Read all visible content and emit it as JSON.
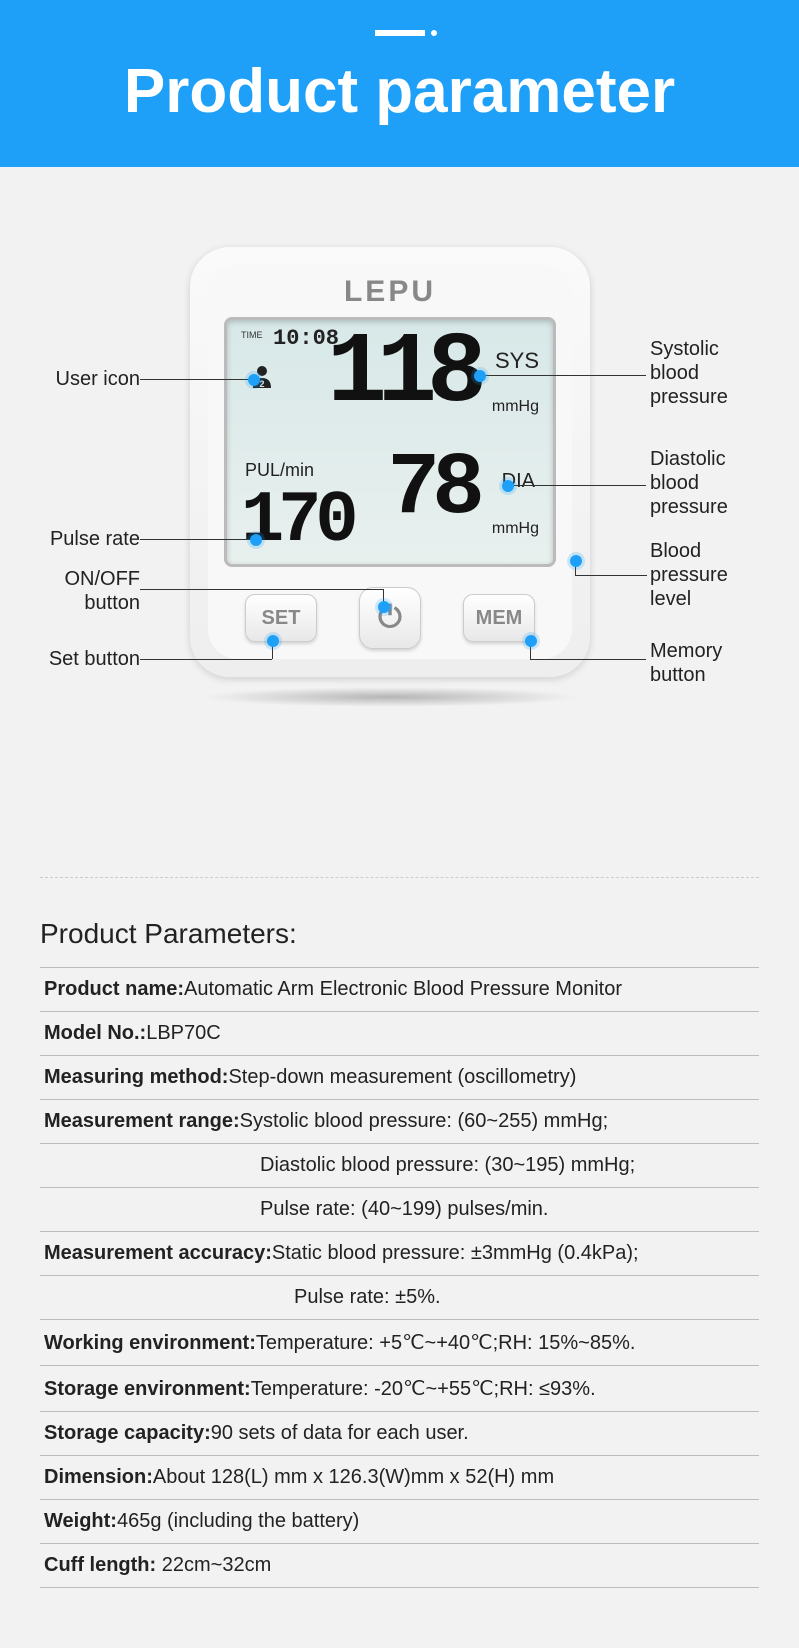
{
  "header": {
    "title": "Product parameter"
  },
  "device": {
    "brand": "LEPU",
    "time_label": "TIME",
    "time": "10:08",
    "user_icon_glyph": "👤",
    "user_badge": "2",
    "pul_label": "PUL/min",
    "pul_value": "170",
    "sys_value": "118",
    "sys_label": "SYS",
    "sys_unit": "mmHg",
    "dia_value": "78",
    "dia_label": "DIA",
    "dia_unit": "mmHg",
    "btn_set": "SET",
    "btn_power": "⏻",
    "btn_mem": "MEM"
  },
  "callouts": {
    "user_icon": "User icon",
    "pulse_rate": "Pulse rate",
    "onoff": "ON/OFF\nbutton",
    "set": "Set button",
    "systolic": "Systolic\nblood\npressure",
    "diastolic": "Diastolic\nblood\npressure",
    "bp_level": "Blood\npressure\nlevel",
    "memory": "Memory\nbutton"
  },
  "params": {
    "heading": "Product Parameters:",
    "rows": [
      {
        "k": "Product name:",
        "v": "Automatic Arm Electronic Blood Pressure Monitor"
      },
      {
        "k": "Model No.:",
        "v": "LBP70C"
      },
      {
        "k": "Measuring method:",
        "v": "Step-down measurement (oscillometry)"
      },
      {
        "k": "Measurement range:",
        "v": "Systolic blood pressure: (60~255) mmHg;"
      }
    ],
    "range_sub": [
      "Diastolic blood pressure: (30~195) mmHg;",
      "Pulse rate: (40~199) pulses/min."
    ],
    "accuracy": {
      "k": "Measurement accuracy:",
      "v": "Static blood pressure: ±3mmHg (0.4kPa);"
    },
    "accuracy_sub": "Pulse rate: ±5%.",
    "rest": [
      {
        "k": "Working environment:",
        "v": "Temperature: +5℃~+40℃;RH: 15%~85%."
      },
      {
        "k": "Storage environment:",
        "v": "Temperature: -20℃~+55℃;RH: ≤93%."
      },
      {
        "k": "Storage capacity:",
        "v": "90 sets of data for each user."
      },
      {
        "k": "Dimension:",
        "v": "About 128(L) mm x 126.3(W)mm x 52(H) mm"
      },
      {
        "k": "Weight:",
        "v": "465g (including the battery)"
      },
      {
        "k": "Cuff length:",
        "v": " 22cm~32cm"
      }
    ]
  },
  "colors": {
    "accent": "#1ea0f9",
    "bg": "#f2f2f2"
  }
}
